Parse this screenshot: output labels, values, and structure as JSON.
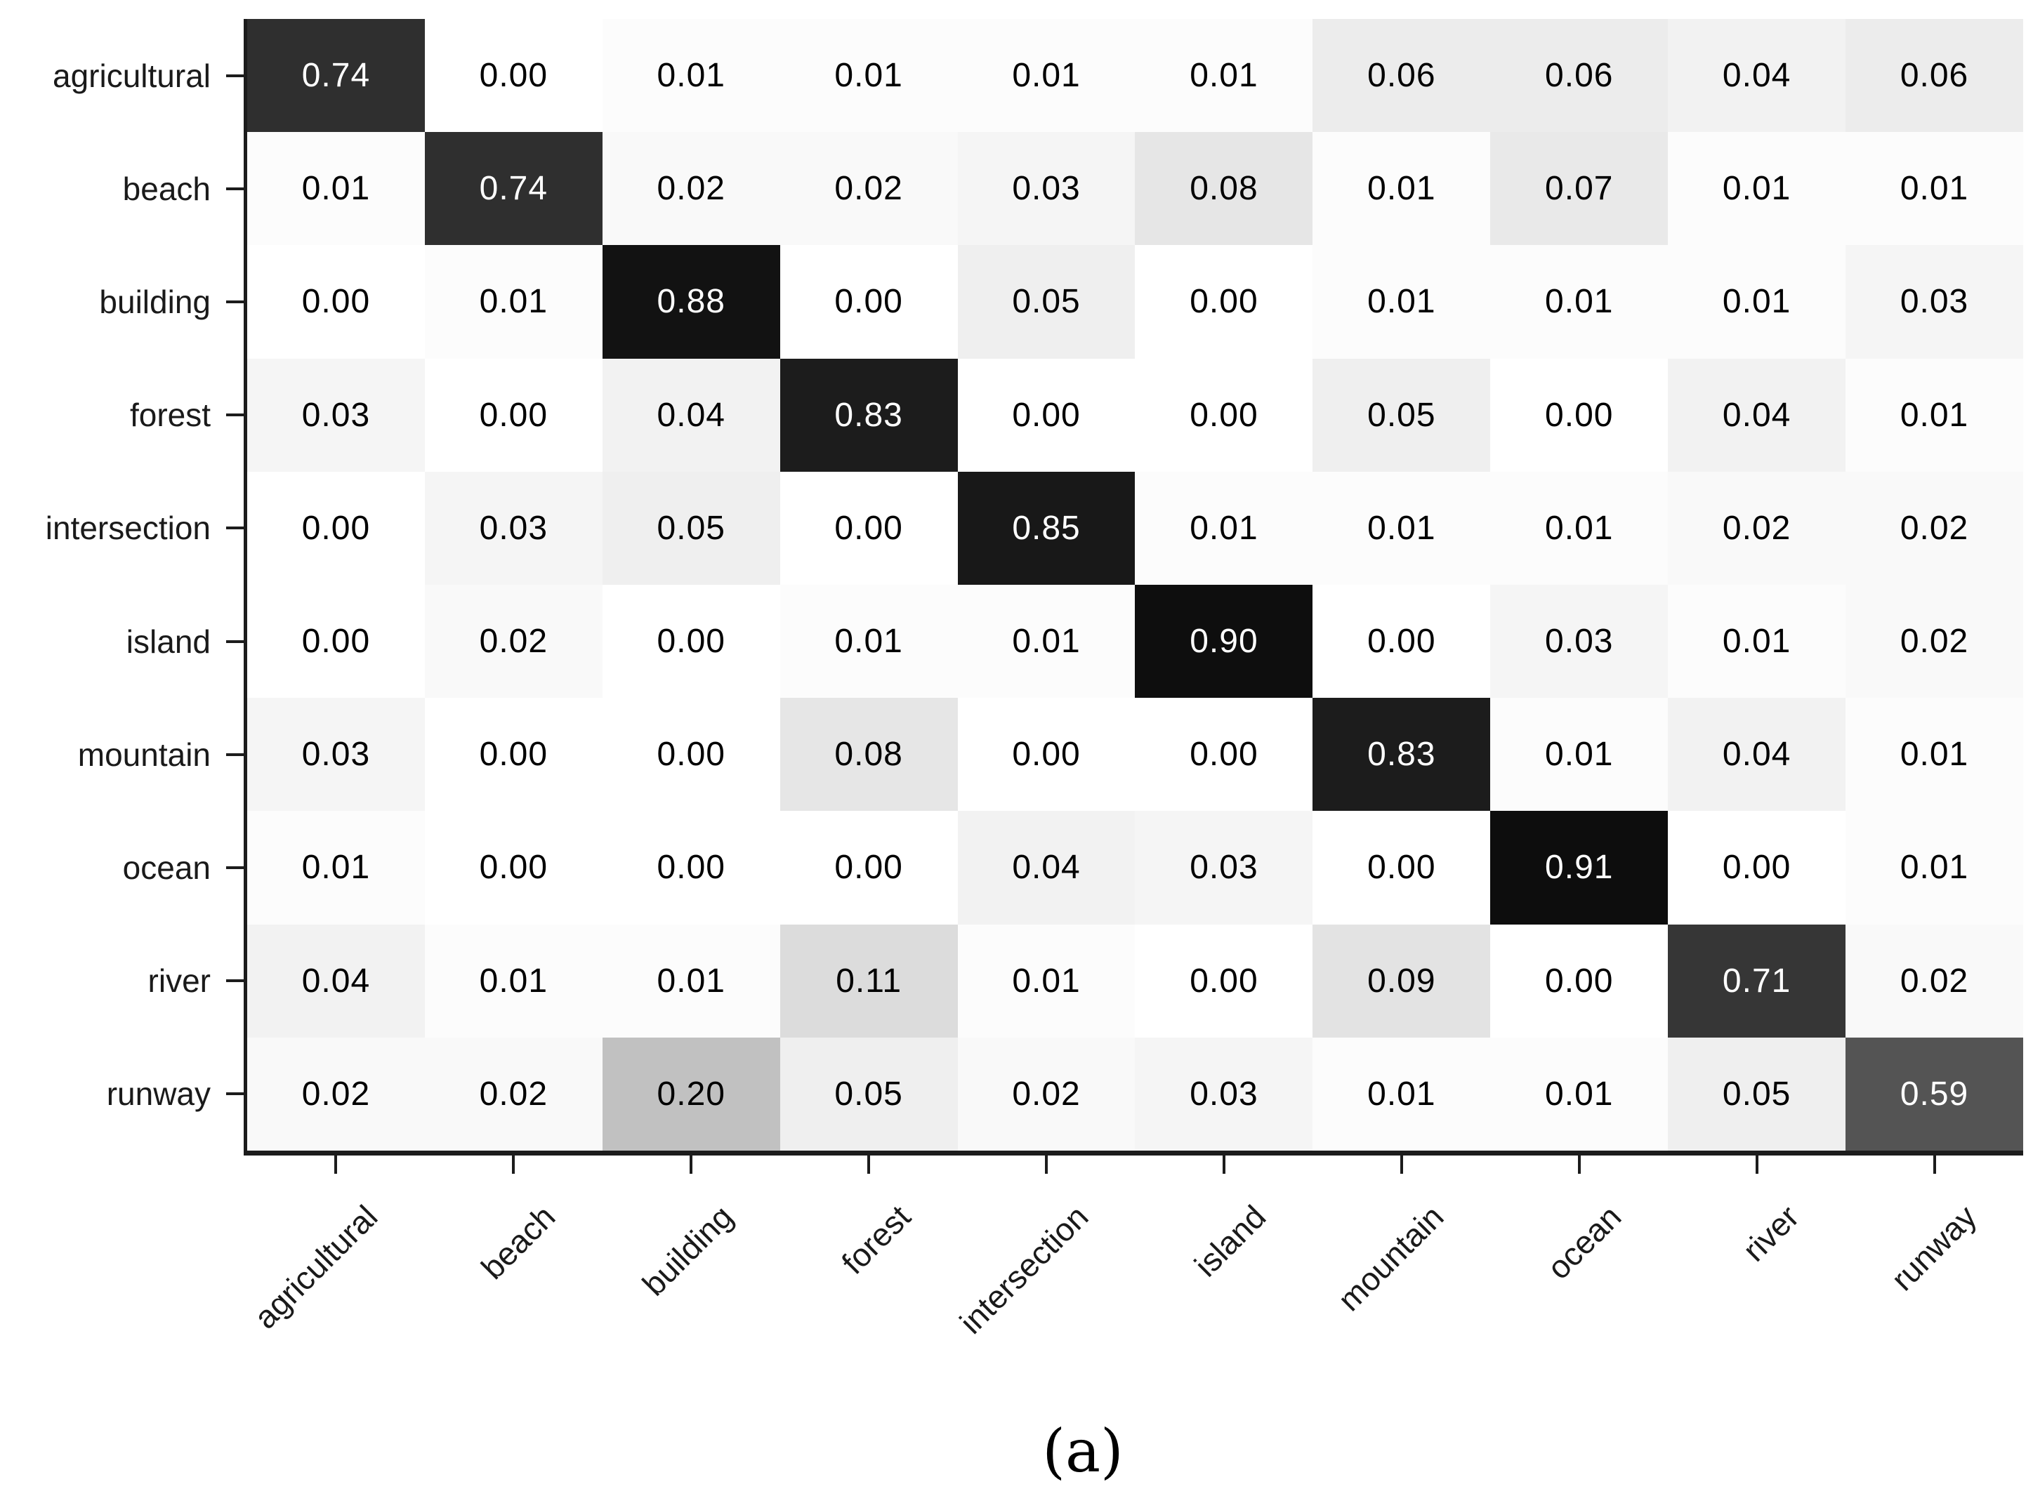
{
  "figure": {
    "caption": "(a)",
    "background": "#ffffff"
  },
  "axes": {
    "tick_color": "#1c1c1c",
    "label_color": "#1a1a1a",
    "x_tick_rotation_deg": -45
  },
  "chart_data": {
    "type": "heatmap",
    "subtype": "confusion-matrix",
    "title": "",
    "xlabel": "",
    "ylabel": "",
    "x_categories": [
      "agricultural",
      "beach",
      "building",
      "forest",
      "intersection",
      "island",
      "mountain",
      "ocean",
      "river",
      "runway"
    ],
    "y_categories": [
      "agricultural",
      "beach",
      "building",
      "forest",
      "intersection",
      "island",
      "mountain",
      "ocean",
      "river",
      "runway"
    ],
    "matrix": [
      [
        0.74,
        0.0,
        0.01,
        0.01,
        0.01,
        0.01,
        0.06,
        0.06,
        0.04,
        0.06
      ],
      [
        0.01,
        0.74,
        0.02,
        0.02,
        0.03,
        0.08,
        0.01,
        0.07,
        0.01,
        0.01
      ],
      [
        0.0,
        0.01,
        0.88,
        0.0,
        0.05,
        0.0,
        0.01,
        0.01,
        0.01,
        0.03
      ],
      [
        0.03,
        0.0,
        0.04,
        0.83,
        0.0,
        0.0,
        0.05,
        0.0,
        0.04,
        0.01
      ],
      [
        0.0,
        0.03,
        0.05,
        0.0,
        0.85,
        0.01,
        0.01,
        0.01,
        0.02,
        0.02
      ],
      [
        0.0,
        0.02,
        0.0,
        0.01,
        0.01,
        0.9,
        0.0,
        0.03,
        0.01,
        0.02
      ],
      [
        0.03,
        0.0,
        0.0,
        0.08,
        0.0,
        0.0,
        0.83,
        0.01,
        0.04,
        0.01
      ],
      [
        0.01,
        0.0,
        0.0,
        0.0,
        0.04,
        0.03,
        0.0,
        0.91,
        0.0,
        0.01
      ],
      [
        0.04,
        0.01,
        0.01,
        0.11,
        0.01,
        0.0,
        0.09,
        0.0,
        0.71,
        0.02
      ],
      [
        0.02,
        0.02,
        0.2,
        0.05,
        0.02,
        0.03,
        0.01,
        0.01,
        0.05,
        0.59
      ]
    ],
    "value_range": [
      0,
      1
    ],
    "value_format": "0.00",
    "colormap": "Greys",
    "colors": {
      "cell_min": "#ffffff",
      "cell_max": "#000000",
      "text_on_light": "#000000",
      "text_on_dark": "#ffffff"
    },
    "grid": false,
    "legend": false
  }
}
